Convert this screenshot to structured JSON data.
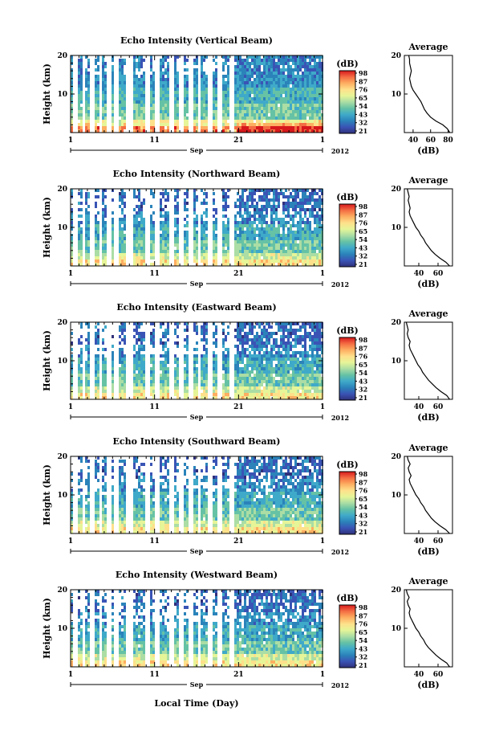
{
  "chart_data": {
    "type": "heatmap",
    "panels": [
      {
        "title": "Echo Intensity (Vertical Beam)",
        "profile": [
          [
            0,
            82
          ],
          [
            1,
            79
          ],
          [
            2,
            74
          ],
          [
            3,
            66
          ],
          [
            4,
            60
          ],
          [
            5,
            56
          ],
          [
            6,
            53
          ],
          [
            7,
            51
          ],
          [
            8,
            49
          ],
          [
            9,
            46
          ],
          [
            10,
            43
          ],
          [
            11,
            40
          ],
          [
            12,
            38
          ],
          [
            13,
            37
          ],
          [
            14,
            36
          ],
          [
            15,
            37
          ],
          [
            16,
            38
          ],
          [
            17,
            37
          ],
          [
            18,
            36
          ],
          [
            19,
            36
          ],
          [
            20,
            35
          ]
        ]
      },
      {
        "title": "Echo Intensity (Northward Beam)",
        "profile": [
          [
            0,
            72
          ],
          [
            1,
            68
          ],
          [
            2,
            62
          ],
          [
            3,
            57
          ],
          [
            4,
            53
          ],
          [
            5,
            50
          ],
          [
            6,
            47
          ],
          [
            7,
            45
          ],
          [
            8,
            42
          ],
          [
            9,
            40
          ],
          [
            10,
            37
          ],
          [
            11,
            35
          ],
          [
            12,
            33
          ],
          [
            13,
            31
          ],
          [
            14,
            30
          ],
          [
            15,
            31
          ],
          [
            16,
            30
          ],
          [
            17,
            29
          ],
          [
            18,
            30
          ],
          [
            19,
            29
          ],
          [
            20,
            28
          ]
        ]
      },
      {
        "title": "Echo Intensity (Eastward Beam)",
        "profile": [
          [
            0,
            72
          ],
          [
            1,
            69
          ],
          [
            2,
            63
          ],
          [
            3,
            58
          ],
          [
            4,
            54
          ],
          [
            5,
            50
          ],
          [
            6,
            47
          ],
          [
            7,
            44
          ],
          [
            8,
            42
          ],
          [
            9,
            39
          ],
          [
            10,
            37
          ],
          [
            11,
            35
          ],
          [
            12,
            33
          ],
          [
            13,
            31
          ],
          [
            14,
            30
          ],
          [
            15,
            31
          ],
          [
            16,
            29
          ],
          [
            17,
            28
          ],
          [
            18,
            29
          ],
          [
            19,
            28
          ],
          [
            20,
            27
          ]
        ]
      },
      {
        "title": "Echo Intensity (Southward Beam)",
        "profile": [
          [
            0,
            72
          ],
          [
            1,
            68
          ],
          [
            2,
            62
          ],
          [
            3,
            57
          ],
          [
            4,
            53
          ],
          [
            5,
            50
          ],
          [
            6,
            47
          ],
          [
            7,
            45
          ],
          [
            8,
            42
          ],
          [
            9,
            40
          ],
          [
            10,
            37
          ],
          [
            11,
            35
          ],
          [
            12,
            33
          ],
          [
            13,
            31
          ],
          [
            14,
            30
          ],
          [
            15,
            32
          ],
          [
            16,
            30
          ],
          [
            17,
            29
          ],
          [
            18,
            31
          ],
          [
            19,
            29
          ],
          [
            20,
            28
          ]
        ]
      },
      {
        "title": "Echo Intensity (Westward Beam)",
        "profile": [
          [
            0,
            72
          ],
          [
            1,
            69
          ],
          [
            2,
            63
          ],
          [
            3,
            58
          ],
          [
            4,
            54
          ],
          [
            5,
            50
          ],
          [
            6,
            47
          ],
          [
            7,
            45
          ],
          [
            8,
            42
          ],
          [
            9,
            40
          ],
          [
            10,
            37
          ],
          [
            11,
            35
          ],
          [
            12,
            33
          ],
          [
            13,
            31
          ],
          [
            14,
            30
          ],
          [
            15,
            31
          ],
          [
            16,
            29
          ],
          [
            17,
            28
          ],
          [
            18,
            30
          ],
          [
            19,
            28
          ],
          [
            20,
            27
          ]
        ]
      }
    ],
    "ylabel": "Height (km)",
    "yticks": [
      "10",
      "20"
    ],
    "ylim": [
      0,
      20
    ],
    "xticks": [
      "1",
      "11",
      "21",
      "1"
    ],
    "month_label": "Sep",
    "year_label": "2012",
    "xlabel": "Local Time (Day)",
    "colorbar": {
      "unit": "(dB)",
      "ticks": [
        "98",
        "87",
        "76",
        "65",
        "54",
        "43",
        "32",
        "21"
      ],
      "colors": [
        "#d7191c",
        "#f46d43",
        "#fdae61",
        "#fee08b",
        "#e6f598",
        "#abdda4",
        "#66c2a5",
        "#3fa9c9",
        "#2b83ba",
        "#3a54b5",
        "#30307a"
      ]
    },
    "profile_panel": {
      "title": "Average",
      "xlabel": "(dB)",
      "yticks": [
        "10",
        "20"
      ],
      "xticks_vertical": [
        "40",
        "60",
        "80"
      ],
      "xticks_other": [
        "40",
        "60"
      ],
      "xlim_vertical": [
        30,
        85
      ],
      "xlim_other": [
        25,
        75
      ]
    }
  }
}
